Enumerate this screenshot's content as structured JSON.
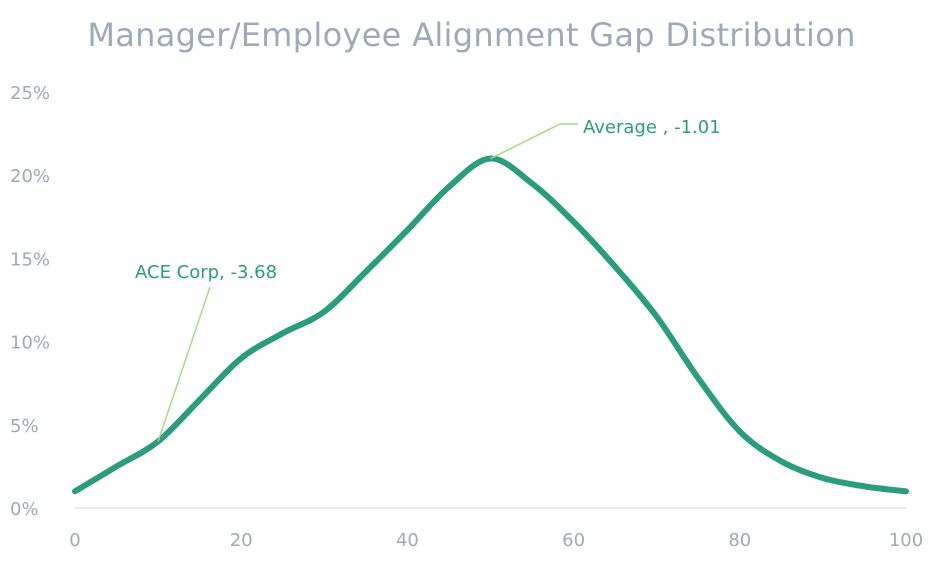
{
  "chart_data": {
    "type": "line",
    "title": "Manager/Employee Alignment Gap Distribution",
    "xlabel": "",
    "ylabel": "",
    "xlim": [
      0,
      100
    ],
    "ylim": [
      0,
      0.25
    ],
    "x_ticks": [
      0,
      20,
      40,
      60,
      80,
      100
    ],
    "y_ticks": [
      0,
      0.05,
      0.1,
      0.15,
      0.2,
      0.25
    ],
    "y_tick_labels": [
      "0%",
      "5%",
      "10%",
      "15%",
      "20%",
      "25%"
    ],
    "grid": false,
    "legend": "none",
    "series": [
      {
        "color": "#2a9d7f",
        "x": [
          0,
          5,
          10,
          15,
          20,
          25,
          30,
          35,
          40,
          45,
          50,
          55,
          60,
          65,
          70,
          75,
          80,
          85,
          90,
          95,
          100
        ],
        "y": [
          0.01,
          0.025,
          0.04,
          0.065,
          0.09,
          0.105,
          0.118,
          0.142,
          0.167,
          0.193,
          0.21,
          0.195,
          0.172,
          0.145,
          0.115,
          0.078,
          0.046,
          0.028,
          0.018,
          0.013,
          0.01
        ]
      }
    ],
    "annotations": [
      {
        "label": "ACE Corp, -3.68",
        "x": 10,
        "y": 0.04,
        "leader_color": "#a8d88a"
      },
      {
        "label": "Average , -1.01",
        "x": 50,
        "y": 0.21,
        "leader_color": "#a8d88a"
      }
    ],
    "colors": {
      "axis_text": "#9eaab5",
      "baseline": "#d0d5d9"
    }
  }
}
